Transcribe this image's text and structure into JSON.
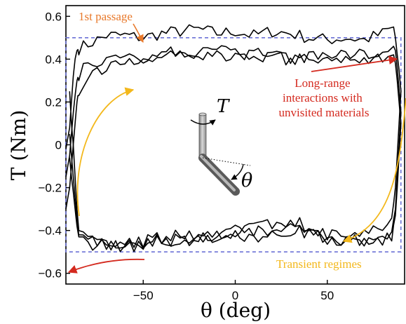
{
  "chart_data": {
    "type": "line",
    "xlabel": "θ (deg)",
    "ylabel": "T (Nm)",
    "xlim": [
      -92,
      92
    ],
    "ylim": [
      -0.65,
      0.65
    ],
    "xticks": [
      -50,
      0,
      50
    ],
    "yticks": [
      -0.6,
      -0.4,
      -0.2,
      0,
      0.2,
      0.4,
      0.6
    ],
    "xtick_labels": [
      "−50",
      "0",
      "50"
    ],
    "ytick_labels": [
      "−0.6",
      "−0.4",
      "−0.2",
      "0",
      "0.2",
      "0.4",
      "0.6"
    ],
    "grid": false,
    "legend": "none",
    "reference_box": {
      "theta": [
        -92,
        90
      ],
      "T": [
        -0.5,
        0.5
      ],
      "style": "dashed",
      "color": "#6b72d6"
    },
    "series": [
      {
        "x": [
          -92,
          -90,
          -89,
          -88,
          -87,
          -86,
          -85,
          -80,
          -70,
          -60,
          -50,
          -40,
          -30,
          -20,
          -10,
          0,
          10,
          20,
          30,
          40,
          50,
          60,
          70,
          80,
          86,
          87,
          88,
          89,
          90,
          89,
          88,
          87,
          85,
          80,
          70,
          60,
          50,
          40,
          30,
          20,
          10,
          0,
          -10,
          -20,
          -30,
          -40,
          -50,
          -60,
          -70,
          -80,
          -85,
          -86,
          -87,
          -88,
          -89,
          -90
        ],
        "y": [
          -0.02,
          0.08,
          0.2,
          0.32,
          0.4,
          0.44,
          0.45,
          0.47,
          0.51,
          0.51,
          0.5,
          0.52,
          0.53,
          0.54,
          0.52,
          0.53,
          0.51,
          0.53,
          0.52,
          0.5,
          0.49,
          0.5,
          0.49,
          0.52,
          0.55,
          0.5,
          0.42,
          0.35,
          0.25,
          0.1,
          -0.05,
          -0.2,
          -0.35,
          -0.4,
          -0.41,
          -0.42,
          -0.42,
          -0.38,
          -0.36,
          -0.37,
          -0.39,
          -0.4,
          -0.41,
          -0.43,
          -0.42,
          -0.43,
          -0.45,
          -0.47,
          -0.45,
          -0.44,
          -0.4,
          -0.3,
          -0.15,
          0.0,
          0.1,
          0.25
        ]
      },
      {
        "x": [
          -92,
          -90,
          -89,
          -88,
          -87,
          -86,
          -85,
          -80,
          -70,
          -60,
          -50,
          -40,
          -30,
          -20,
          -10,
          0,
          10,
          20,
          30,
          40,
          50,
          60,
          70,
          80,
          86,
          87,
          88,
          89,
          90,
          89,
          88,
          87,
          85,
          80,
          70,
          60,
          50,
          40,
          30,
          20,
          10,
          0,
          -10,
          -20,
          -30,
          -40,
          -50,
          -60,
          -70,
          -80,
          -85,
          -86,
          -87,
          -88,
          -89,
          -90
        ],
        "y": [
          -0.15,
          -0.05,
          0.05,
          0.15,
          0.23,
          0.3,
          0.33,
          0.37,
          0.39,
          0.41,
          0.41,
          0.43,
          0.44,
          0.43,
          0.44,
          0.42,
          0.43,
          0.42,
          0.41,
          0.42,
          0.4,
          0.41,
          0.4,
          0.41,
          0.42,
          0.38,
          0.3,
          0.2,
          0.1,
          -0.05,
          -0.2,
          -0.33,
          -0.42,
          -0.44,
          -0.45,
          -0.46,
          -0.44,
          -0.42,
          -0.39,
          -0.4,
          -0.41,
          -0.4,
          -0.43,
          -0.44,
          -0.45,
          -0.44,
          -0.46,
          -0.48,
          -0.46,
          -0.45,
          -0.42,
          -0.35,
          -0.25,
          -0.15,
          -0.05,
          0.05
        ]
      },
      {
        "x": [
          -92,
          -90,
          -89,
          -88,
          -87,
          -86,
          -85,
          -80,
          -70,
          -60,
          -50,
          -40,
          -30,
          -20,
          -10,
          0,
          10,
          20,
          30,
          40,
          50,
          60,
          70,
          80,
          86,
          87,
          88,
          89,
          90,
          89,
          88,
          87,
          85,
          80,
          70,
          60,
          50,
          40,
          30,
          20,
          10,
          0,
          -10,
          -20,
          -30,
          -40,
          -50,
          -60,
          -70,
          -80,
          -85,
          -86,
          -87,
          -88,
          -89,
          -90
        ],
        "y": [
          -0.3,
          -0.2,
          -0.1,
          0.0,
          0.1,
          0.2,
          0.26,
          0.33,
          0.36,
          0.38,
          0.39,
          0.41,
          0.43,
          0.42,
          0.42,
          0.41,
          0.42,
          0.41,
          0.4,
          0.41,
          0.4,
          0.42,
          0.43,
          0.44,
          0.46,
          0.44,
          0.36,
          0.26,
          0.15,
          0.0,
          -0.15,
          -0.3,
          -0.4,
          -0.43,
          -0.44,
          -0.45,
          -0.44,
          -0.41,
          -0.4,
          -0.42,
          -0.43,
          -0.42,
          -0.44,
          -0.45,
          -0.44,
          -0.45,
          -0.47,
          -0.49,
          -0.47,
          -0.46,
          -0.43,
          -0.38,
          -0.3,
          -0.22,
          -0.15,
          -0.06
        ]
      }
    ],
    "annotations": [
      {
        "text": "1st passage",
        "color": "#e8792b"
      },
      {
        "lines": [
          "Long-range",
          "interactions with",
          "unvisited materials"
        ],
        "color": "#d42a1f"
      },
      {
        "text": "Transient regimes",
        "color": "#f3b81c"
      }
    ],
    "inset": {
      "torque_label": "T",
      "angle_label": "θ"
    }
  }
}
